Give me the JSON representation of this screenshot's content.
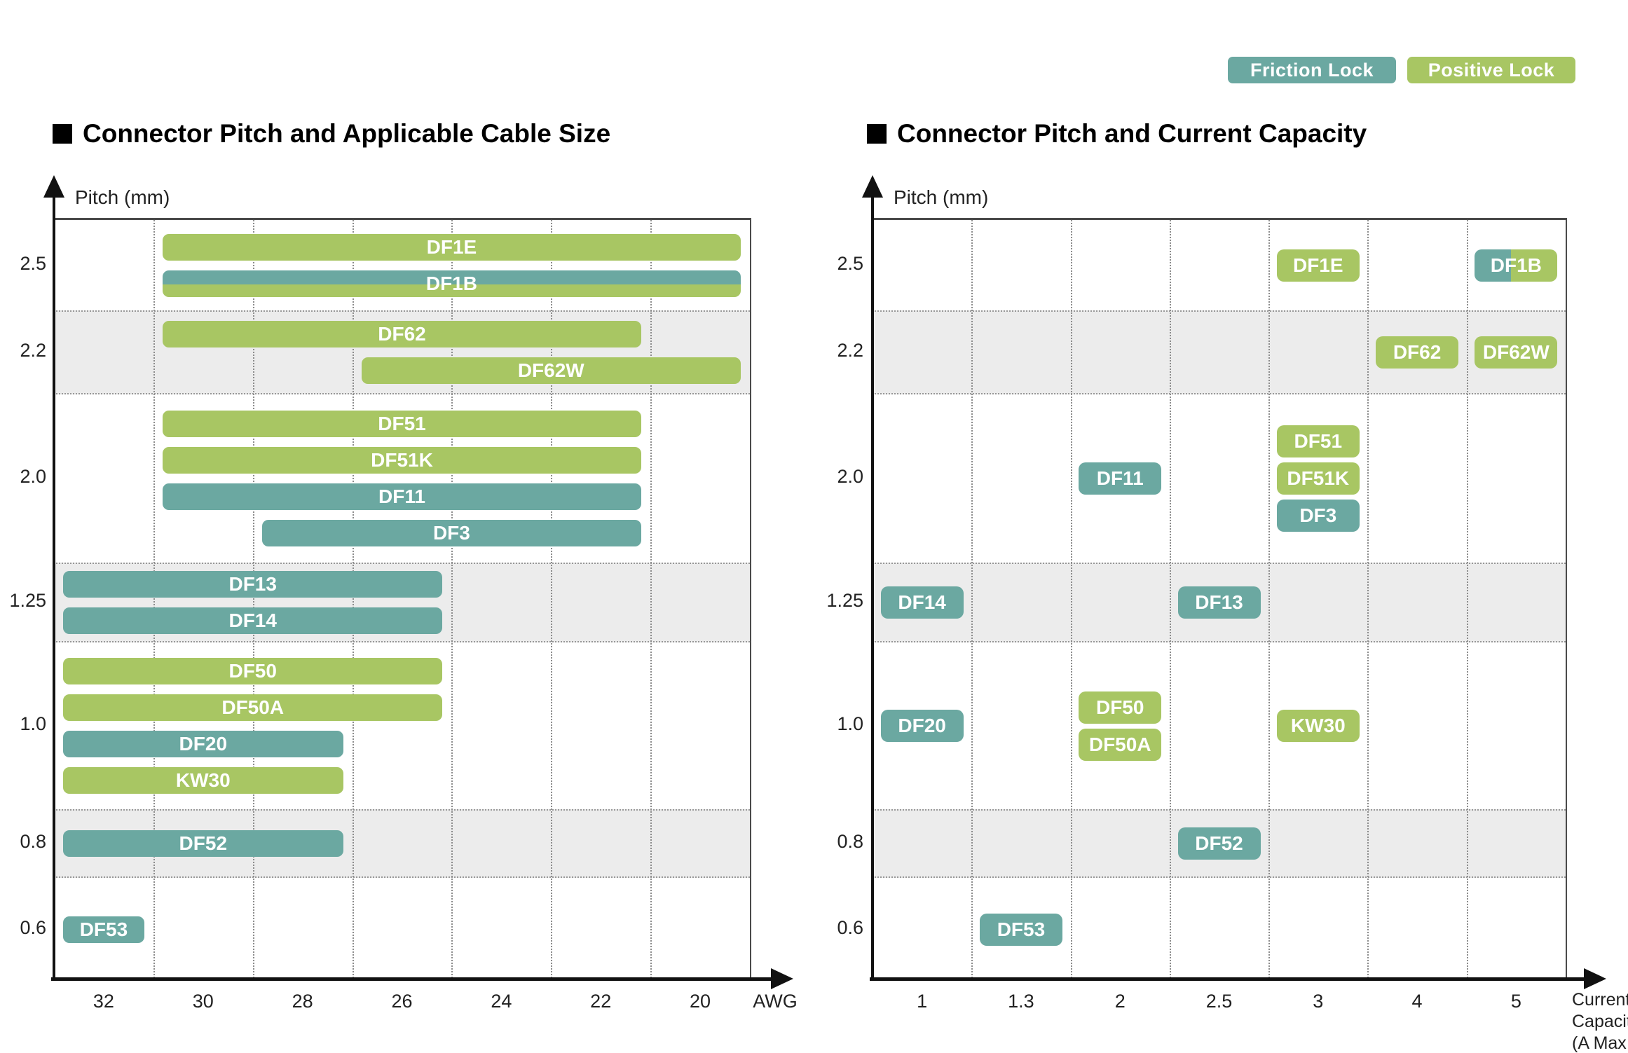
{
  "colors": {
    "friction_lock": "#6BA8A1",
    "positive_lock": "#A8C663",
    "shaded_band": "#ECECEC",
    "axis": "#111111",
    "plot_border": "#4A4A4A",
    "text": "#222222"
  },
  "legend": [
    {
      "label": "Friction Lock",
      "lock": "friction"
    },
    {
      "label": "Positive Lock",
      "lock": "positive"
    }
  ],
  "chart_data": [
    {
      "type": "bar",
      "title": "Connector Pitch and Applicable Cable Size",
      "xlabel": "AWG",
      "ylabel": "Pitch (mm)",
      "x_categories": [
        "32",
        "30",
        "28",
        "26",
        "24",
        "22",
        "20"
      ],
      "y_categories": [
        "2.5",
        "2.2",
        "2.0",
        "1.25",
        "1.0",
        "0.8",
        "0.6"
      ],
      "shaded_rows": [
        "2.2",
        "1.25",
        "0.8"
      ],
      "grid": true,
      "legend_position": "top-right",
      "series": [
        {
          "name": "DF1E",
          "pitch": "2.5",
          "lock": "positive",
          "awg_from": "30",
          "awg_to": "20"
        },
        {
          "name": "DF1B",
          "pitch": "2.5",
          "lock": "both",
          "awg_from": "30",
          "awg_to": "20"
        },
        {
          "name": "DF62",
          "pitch": "2.2",
          "lock": "positive",
          "awg_from": "30",
          "awg_to": "22"
        },
        {
          "name": "DF62W",
          "pitch": "2.2",
          "lock": "positive",
          "awg_from": "26",
          "awg_to": "20"
        },
        {
          "name": "DF51",
          "pitch": "2.0",
          "lock": "positive",
          "awg_from": "30",
          "awg_to": "22"
        },
        {
          "name": "DF51K",
          "pitch": "2.0",
          "lock": "positive",
          "awg_from": "30",
          "awg_to": "22"
        },
        {
          "name": "DF11",
          "pitch": "2.0",
          "lock": "friction",
          "awg_from": "30",
          "awg_to": "22"
        },
        {
          "name": "DF3",
          "pitch": "2.0",
          "lock": "friction",
          "awg_from": "28",
          "awg_to": "22"
        },
        {
          "name": "DF13",
          "pitch": "1.25",
          "lock": "friction",
          "awg_from": "32",
          "awg_to": "26"
        },
        {
          "name": "DF14",
          "pitch": "1.25",
          "lock": "friction",
          "awg_from": "32",
          "awg_to": "26"
        },
        {
          "name": "DF50",
          "pitch": "1.0",
          "lock": "positive",
          "awg_from": "32",
          "awg_to": "26"
        },
        {
          "name": "DF50A",
          "pitch": "1.0",
          "lock": "positive",
          "awg_from": "32",
          "awg_to": "26"
        },
        {
          "name": "DF20",
          "pitch": "1.0",
          "lock": "friction",
          "awg_from": "32",
          "awg_to": "28"
        },
        {
          "name": "KW30",
          "pitch": "1.0",
          "lock": "positive",
          "awg_from": "32",
          "awg_to": "28"
        },
        {
          "name": "DF52",
          "pitch": "0.8",
          "lock": "friction",
          "awg_from": "32",
          "awg_to": "28"
        },
        {
          "name": "DF53",
          "pitch": "0.6",
          "lock": "friction",
          "awg_from": "32",
          "awg_to": "32"
        }
      ]
    },
    {
      "type": "scatter",
      "title": "Connector Pitch and Current Capacity",
      "xlabel": "Current Capacity (A Max.)",
      "xlabel_lines": [
        "Current",
        "Capacity",
        "(A Max.)"
      ],
      "ylabel": "Pitch (mm)",
      "x_categories": [
        "1",
        "1.3",
        "2",
        "2.5",
        "3",
        "4",
        "5"
      ],
      "y_categories": [
        "2.5",
        "2.2",
        "2.0",
        "1.25",
        "1.0",
        "0.8",
        "0.6"
      ],
      "shaded_rows": [
        "2.2",
        "1.25",
        "0.8"
      ],
      "grid": true,
      "points": [
        {
          "name": "DF1E",
          "pitch": "2.5",
          "lock": "positive",
          "capacity": "3"
        },
        {
          "name": "DF1B",
          "pitch": "2.5",
          "lock": "both",
          "capacity": "5"
        },
        {
          "name": "DF62",
          "pitch": "2.2",
          "lock": "positive",
          "capacity": "4"
        },
        {
          "name": "DF62W",
          "pitch": "2.2",
          "lock": "positive",
          "capacity": "5"
        },
        {
          "name": "DF11",
          "pitch": "2.0",
          "lock": "friction",
          "capacity": "2"
        },
        {
          "name": "DF51",
          "pitch": "2.0",
          "lock": "positive",
          "capacity": "3"
        },
        {
          "name": "DF51K",
          "pitch": "2.0",
          "lock": "positive",
          "capacity": "3"
        },
        {
          "name": "DF3",
          "pitch": "2.0",
          "lock": "friction",
          "capacity": "3"
        },
        {
          "name": "DF14",
          "pitch": "1.25",
          "lock": "friction",
          "capacity": "1"
        },
        {
          "name": "DF13",
          "pitch": "1.25",
          "lock": "friction",
          "capacity": "2.5"
        },
        {
          "name": "DF20",
          "pitch": "1.0",
          "lock": "friction",
          "capacity": "1"
        },
        {
          "name": "DF50",
          "pitch": "1.0",
          "lock": "positive",
          "capacity": "2"
        },
        {
          "name": "DF50A",
          "pitch": "1.0",
          "lock": "positive",
          "capacity": "2"
        },
        {
          "name": "KW30",
          "pitch": "1.0",
          "lock": "positive",
          "capacity": "3"
        },
        {
          "name": "DF52",
          "pitch": "0.8",
          "lock": "friction",
          "capacity": "2.5"
        },
        {
          "name": "DF53",
          "pitch": "0.6",
          "lock": "friction",
          "capacity": "1.3"
        }
      ]
    }
  ]
}
